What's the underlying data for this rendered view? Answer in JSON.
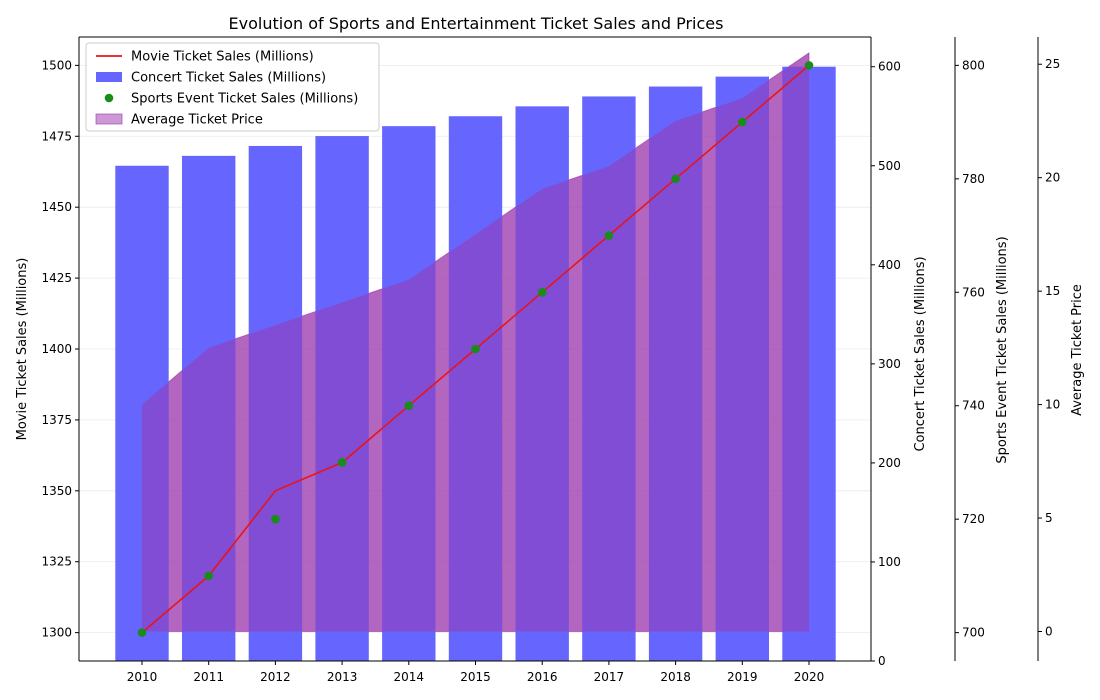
{
  "chart_data": {
    "type": "bar",
    "title": "Evolution of Sports and Entertainment Ticket Sales and Prices",
    "categories": [
      "2010",
      "2011",
      "2012",
      "2013",
      "2014",
      "2015",
      "2016",
      "2017",
      "2018",
      "2019",
      "2020"
    ],
    "series": [
      {
        "name": "Movie Ticket Sales (Millions)",
        "kind": "line",
        "axis": "movie",
        "color": "#e8141c",
        "values": [
          1300,
          1320,
          1350,
          1360,
          1380,
          1400,
          1420,
          1440,
          1460,
          1480,
          1500
        ]
      },
      {
        "name": "Concert Ticket Sales (Millions)",
        "kind": "bar",
        "axis": "concert",
        "color": "#6666ff",
        "values": [
          500,
          510,
          520,
          530,
          540,
          550,
          560,
          570,
          580,
          590,
          600
        ]
      },
      {
        "name": "Sports Event Ticket Sales (Millions)",
        "kind": "scatter",
        "axis": "sports",
        "color": "#1a8c1a",
        "values": [
          700,
          710,
          720,
          730,
          740,
          750,
          760,
          770,
          780,
          790,
          800
        ]
      },
      {
        "name": "Average Ticket Price",
        "kind": "area",
        "axis": "price",
        "color": "#9933aa",
        "values": [
          10,
          12.5,
          13.5,
          14.5,
          15.5,
          17.5,
          19.5,
          20.5,
          22.5,
          23.5,
          25.5
        ]
      }
    ],
    "axes": {
      "movie": {
        "label": "Movie Ticket Sales (Millions)",
        "range": [
          1290,
          1510
        ],
        "ticks": [
          "1300",
          "1325",
          "1350",
          "1375",
          "1400",
          "1425",
          "1450",
          "1475",
          "1500"
        ]
      },
      "concert": {
        "label": "Concert Ticket Sales (Millions)",
        "range": [
          0,
          630
        ],
        "ticks": [
          "0",
          "100",
          "200",
          "300",
          "400",
          "500",
          "600"
        ]
      },
      "sports": {
        "label": "Sports Event Ticket Sales (Millions)",
        "range": [
          695,
          805
        ],
        "ticks": [
          "700",
          "720",
          "740",
          "760",
          "780",
          "800"
        ]
      },
      "price": {
        "label": "Average Ticket Price",
        "range": [
          -1.3,
          26.2
        ],
        "ticks": [
          "0",
          "5",
          "10",
          "15",
          "20",
          "25"
        ]
      }
    },
    "grid": true,
    "legend_position": "top-left"
  }
}
